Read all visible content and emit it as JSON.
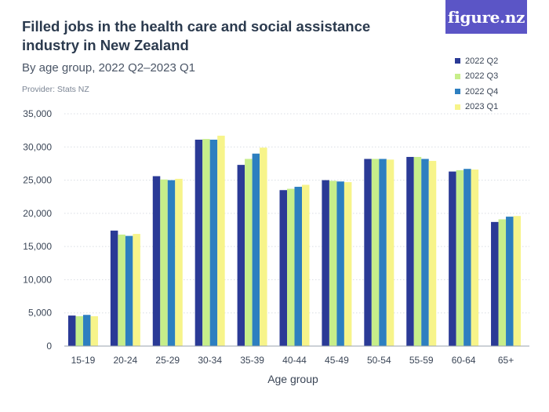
{
  "header": {
    "title": "Filled jobs in the health care and social assistance industry in New Zealand",
    "subtitle": "By age group, 2022 Q2–2023 Q1",
    "provider": "Provider: Stats NZ",
    "logo_text": "figure.nz",
    "logo_color": "#5b55c6"
  },
  "chart_data": {
    "type": "bar",
    "title": "Filled jobs in the health care and social assistance industry in New Zealand",
    "xlabel": "Age group",
    "ylabel": "",
    "ylim": [
      0,
      35000
    ],
    "yticks": [
      0,
      5000,
      10000,
      15000,
      20000,
      25000,
      30000,
      35000
    ],
    "ytick_labels": [
      "0",
      "5,000",
      "10,000",
      "15,000",
      "20,000",
      "25,000",
      "30,000",
      "35,000"
    ],
    "grid": true,
    "legend_position": "top-right",
    "categories": [
      "15-19",
      "20-24",
      "25-29",
      "30-34",
      "35-39",
      "40-44",
      "45-49",
      "50-54",
      "55-59",
      "60-64",
      "65+"
    ],
    "series": [
      {
        "name": "2022 Q2",
        "color": "#2a3a96",
        "values": [
          4600,
          17400,
          25600,
          31100,
          27300,
          23500,
          25000,
          28200,
          28500,
          26300,
          18700
        ]
      },
      {
        "name": "2022 Q3",
        "color": "#c7ee8a",
        "values": [
          4500,
          16800,
          25100,
          31200,
          28200,
          23700,
          24900,
          28200,
          28500,
          26500,
          19100
        ]
      },
      {
        "name": "2022 Q4",
        "color": "#2d7fc0",
        "values": [
          4700,
          16600,
          25000,
          31100,
          29000,
          24000,
          24800,
          28200,
          28200,
          26700,
          19500
        ]
      },
      {
        "name": "2023 Q1",
        "color": "#f7f48a",
        "values": [
          4500,
          16900,
          25200,
          31700,
          29900,
          24300,
          24700,
          28100,
          27900,
          26600,
          19600
        ]
      }
    ]
  }
}
